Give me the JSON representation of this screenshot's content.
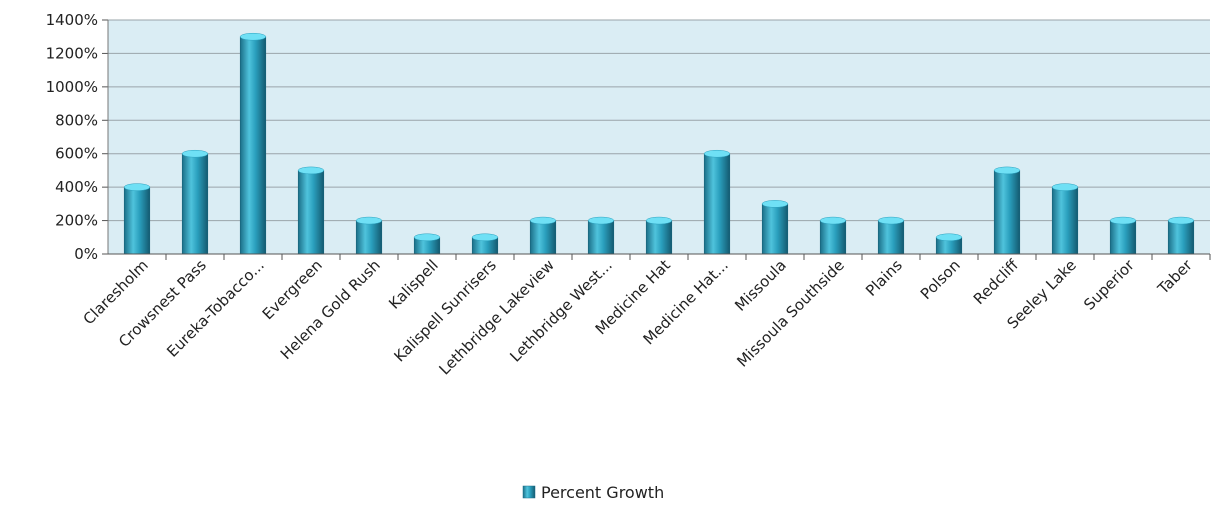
{
  "chart_data": {
    "type": "bar",
    "categories": [
      "Claresholm",
      "Crowsnest Pass",
      "Eureka-Tobacco...",
      "Evergreen",
      "Helena Gold Rush",
      "Kalispell",
      "Kalispell Sunrisers",
      "Lethbridge Lakeview",
      "Lethbridge West...",
      "Medicine Hat",
      "Medicine Hat...",
      "Missoula",
      "Missoula Southside",
      "Plains",
      "Polson",
      "Redcliff",
      "Seeley Lake",
      "Superior",
      "Taber"
    ],
    "series": [
      {
        "name": "Percent Growth",
        "values": [
          400,
          600,
          1300,
          500,
          200,
          100,
          100,
          200,
          200,
          200,
          600,
          300,
          200,
          200,
          100,
          500,
          400,
          200,
          200
        ]
      }
    ],
    "ylim": [
      0,
      1400
    ],
    "yticks": [
      0,
      200,
      400,
      600,
      800,
      1000,
      1200,
      1400
    ],
    "ytick_suffix": "%",
    "grid": true,
    "legend_position": "bottom",
    "colors": {
      "plot_background": "#daedf4",
      "bar_light": "#4fc3dc",
      "bar_mid": "#2a9fbd",
      "bar_dark": "#1b6f88",
      "bar_top": "#6fe0f5",
      "gridline": "#9aa4aa"
    }
  }
}
